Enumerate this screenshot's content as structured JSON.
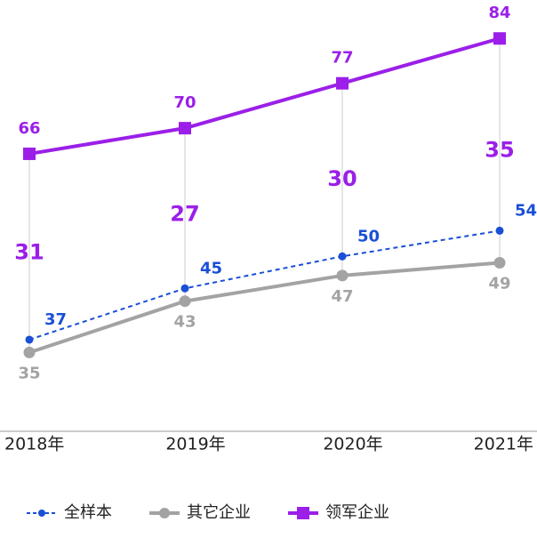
{
  "chart_data": {
    "type": "line",
    "categories": [
      "2018年",
      "2019年",
      "2020年",
      "2021年"
    ],
    "series": [
      {
        "name": "全样本",
        "color": "#1a4fd6",
        "values": [
          37,
          45,
          50,
          54
        ],
        "dashed": true,
        "marker": "circle"
      },
      {
        "name": "其它企业",
        "color": "#a3a3a3",
        "values": [
          35,
          43,
          47,
          49
        ],
        "dashed": false,
        "marker": "circle"
      },
      {
        "name": "领军企业",
        "color": "#9b1fe8",
        "values": [
          66,
          70,
          77,
          84
        ],
        "dashed": false,
        "marker": "square"
      }
    ],
    "differences": [
      31,
      27,
      30,
      35
    ],
    "ylim": [
      22.7,
      90
    ],
    "legend": "bottom"
  }
}
